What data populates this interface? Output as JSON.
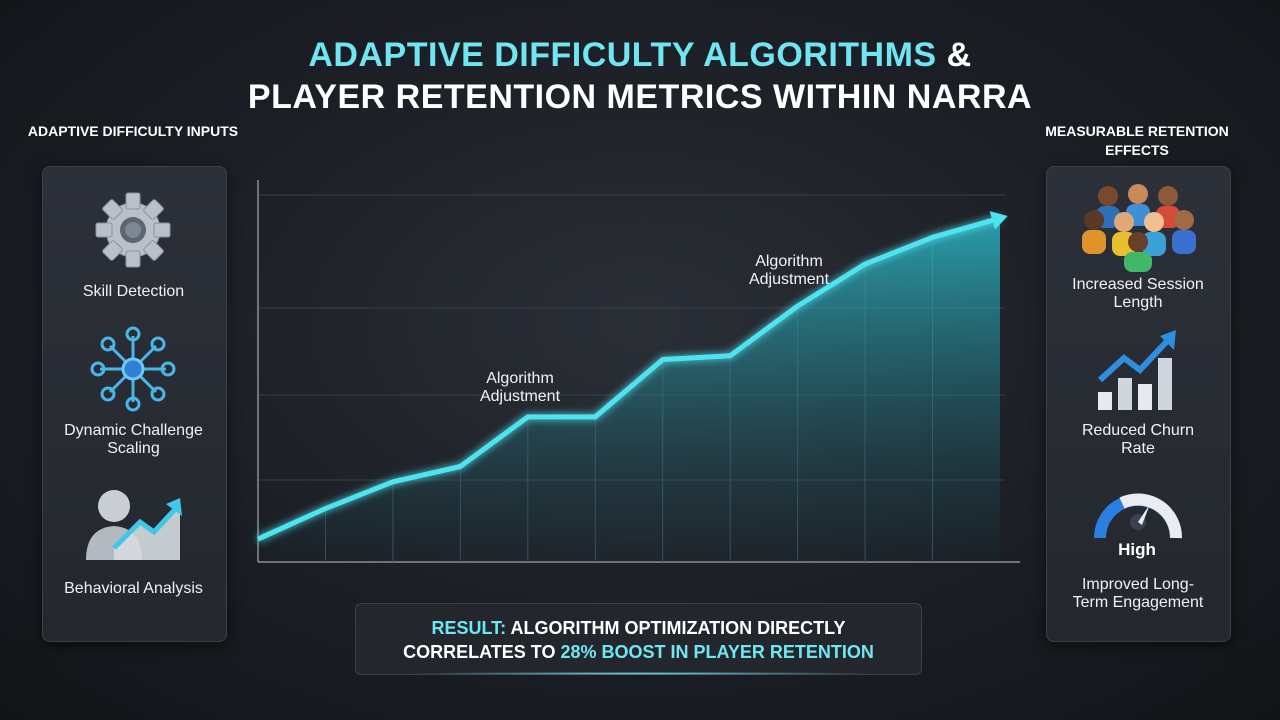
{
  "title": [
    "ADAPTIVE DIFFICULTY ALGORITHMS",
    "&",
    "PLAYER RETENTION METRICS WITHIN NARRA"
  ],
  "left_panel": {
    "heading": "ADAPTIVE DIFFICULTY INPUTS",
    "items": [
      "Skill Detection",
      "Dynamic Challenge Scaling",
      "Behavioral Analysis"
    ]
  },
  "right_panel": {
    "heading": "MEASURABLE RETENTION EFFECTS",
    "items": [
      "Increased Session Length",
      "Reduced Churn Rate",
      "Improved Long-Term Engagement"
    ],
    "gauge_label": "High"
  },
  "result": {
    "label": "RESULT:",
    "text": "ALGORITHM OPTIMIZATION DIRECTLY CORRELATES TO",
    "highlight": "28% BOOST IN PLAYER RETENTION"
  },
  "chart_data": {
    "type": "line",
    "categories": [
      null,
      null,
      null,
      null,
      null,
      null,
      null,
      null,
      null,
      null,
      null,
      null
    ],
    "values": [
      6,
      14,
      21,
      25,
      38,
      38,
      53,
      54,
      67,
      78,
      85,
      90
    ],
    "color": "#4fe3f0",
    "ylim": [
      0,
      100
    ],
    "annotations": [
      "Algorithm Adjustment",
      "Algorithm Adjustment"
    ]
  }
}
